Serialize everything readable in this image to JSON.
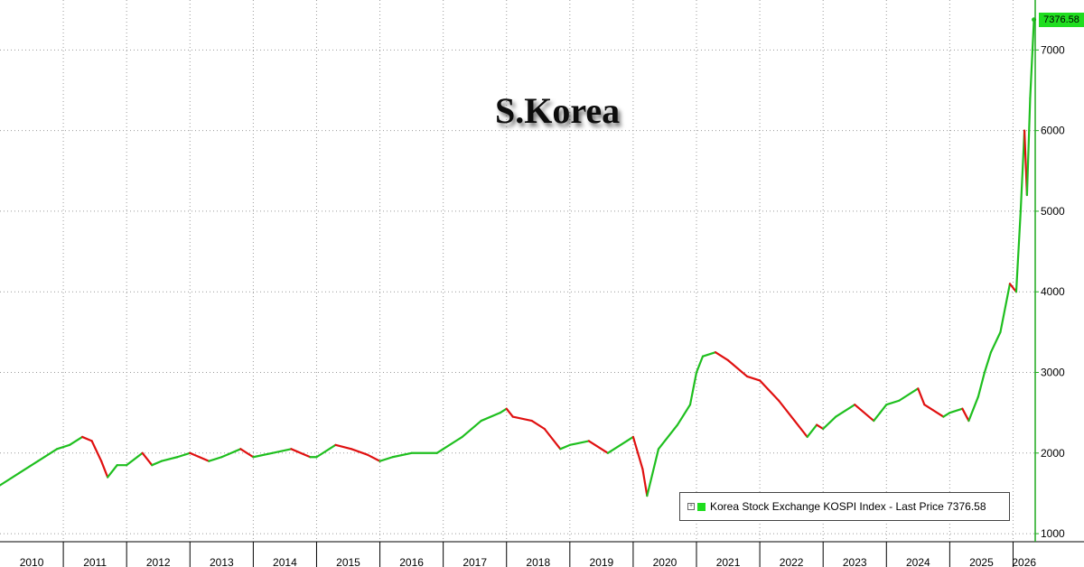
{
  "chart_data": {
    "type": "line",
    "title": "S.Korea",
    "series": [
      {
        "name": "Korea Stock Exchange KOSPI Index - Last Price 7376.58",
        "x": [
          2010.0,
          2010.3,
          2010.6,
          2010.9,
          2011.1,
          2011.3,
          2011.45,
          2011.6,
          2011.7,
          2011.85,
          2012.0,
          2012.25,
          2012.4,
          2012.55,
          2012.8,
          2013.0,
          2013.3,
          2013.5,
          2013.8,
          2014.0,
          2014.3,
          2014.6,
          2014.9,
          2015.0,
          2015.3,
          2015.55,
          2015.8,
          2016.0,
          2016.2,
          2016.5,
          2016.9,
          2017.0,
          2017.3,
          2017.6,
          2017.9,
          2018.0,
          2018.1,
          2018.4,
          2018.6,
          2018.85,
          2019.0,
          2019.3,
          2019.6,
          2019.9,
          2020.0,
          2020.15,
          2020.22,
          2020.4,
          2020.7,
          2020.9,
          2021.0,
          2021.1,
          2021.3,
          2021.5,
          2021.8,
          2022.0,
          2022.3,
          2022.55,
          2022.75,
          2022.9,
          2023.0,
          2023.2,
          2023.5,
          2023.8,
          2023.9,
          2024.0,
          2024.2,
          2024.5,
          2024.6,
          2024.9,
          2025.0,
          2025.2,
          2025.3,
          2025.45,
          2025.55,
          2025.65,
          2025.8,
          2025.95,
          2026.05,
          2026.12,
          2026.18,
          2026.22,
          2026.27,
          2026.33
        ],
        "values": [
          1600,
          1750,
          1900,
          2050,
          2100,
          2200,
          2150,
          1900,
          1700,
          1850,
          1850,
          2000,
          1850,
          1900,
          1950,
          2000,
          1900,
          1950,
          2050,
          1950,
          2000,
          2050,
          1950,
          1950,
          2100,
          2050,
          1980,
          1900,
          1950,
          2000,
          2000,
          2050,
          2200,
          2400,
          2500,
          2550,
          2450,
          2400,
          2300,
          2050,
          2100,
          2150,
          2000,
          2150,
          2200,
          1800,
          1470,
          2050,
          2350,
          2600,
          3000,
          3200,
          3250,
          3150,
          2950,
          2900,
          2650,
          2400,
          2200,
          2350,
          2300,
          2450,
          2600,
          2400,
          2500,
          2600,
          2650,
          2800,
          2600,
          2450,
          2500,
          2550,
          2400,
          2700,
          3000,
          3250,
          3500,
          4100,
          4000,
          5000,
          6000,
          5200,
          6400,
          7376.58
        ]
      }
    ],
    "xlim": [
      2010.0,
      2026.35
    ],
    "ylim": [
      900,
      7620
    ],
    "yticks": [
      1000,
      2000,
      3000,
      4000,
      5000,
      6000,
      7000
    ],
    "ytick_labels": [
      "1000",
      "2000",
      "3000",
      "4000",
      "5000",
      "6000",
      "7000"
    ],
    "xticks": [
      2010,
      2011,
      2012,
      2013,
      2014,
      2015,
      2016,
      2017,
      2018,
      2019,
      2020,
      2021,
      2022,
      2023,
      2024,
      2025,
      2026
    ],
    "xtick_labels": [
      "2010",
      "2011",
      "2012",
      "2013",
      "2014",
      "2015",
      "2016",
      "2017",
      "2018",
      "2019",
      "2020",
      "2021",
      "2022",
      "2023",
      "2024",
      "2025",
      "2026"
    ],
    "last_price_label": "7376.58",
    "grid": true,
    "legend_position": "bottom-right",
    "colors": {
      "up": "#1fbf1f",
      "down": "#e01010",
      "axis": "#1faa1f",
      "tag": "#1fdd1f"
    }
  }
}
